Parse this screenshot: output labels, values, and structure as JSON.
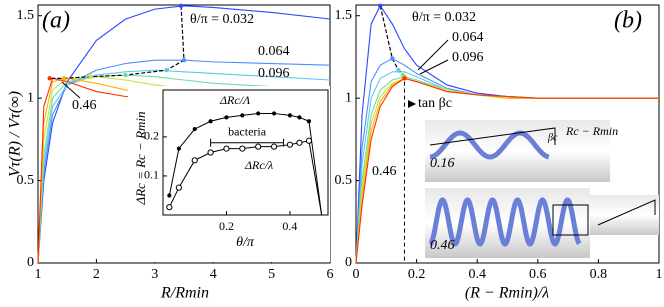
{
  "chart_data": [
    {
      "type": "line",
      "panel_label": "(a)",
      "x_label": "R/Rmin",
      "y_label": "Vτ(R) / Vτ(∞)",
      "x": [
        1,
        1.1,
        1.25,
        1.5,
        2,
        2.5,
        3,
        3.5,
        4,
        5,
        6
      ],
      "series": [
        {
          "color": "#2a48ff",
          "values": [
            0,
            0.5,
            0.85,
            1.1,
            1.35,
            1.48,
            1.54,
            1.56,
            1.55,
            1.52,
            1.48
          ]
        },
        {
          "color": "#4a90ff",
          "values": [
            0,
            0.55,
            0.9,
            1.08,
            1.17,
            1.21,
            1.23,
            1.23,
            1.22,
            1.21,
            1.2
          ]
        },
        {
          "color": "#60c8ec",
          "values": [
            0,
            0.6,
            0.95,
            1.08,
            1.14,
            1.16,
            1.17,
            1.16,
            1.15,
            1.13,
            1.11
          ]
        },
        {
          "color": "#70dca0",
          "values": [
            0,
            0.65,
            1.0,
            1.1,
            1.13,
            1.14,
            1.13,
            1.11,
            1.09,
            1.07,
            1.05
          ]
        },
        {
          "color": "#c8e040",
          "values": [
            0,
            0.75,
            1.05,
            1.12,
            1.13,
            1.11,
            1.08,
            1.06,
            1.04,
            1.03,
            1.02
          ]
        },
        {
          "color": "#ffb000",
          "values": [
            0,
            0.85,
            1.1,
            1.12,
            1.09,
            1.05,
            1.03,
            1.02,
            1.01,
            1.0,
            1.0
          ]
        },
        {
          "color": "#ff3000",
          "values": [
            0,
            0.95,
            1.12,
            1.1,
            1.04,
            1.01,
            1.0,
            1.0,
            1.0,
            1.0,
            1.0
          ]
        }
      ],
      "peaks": {
        "x": [
          3.45,
          3.5,
          3.2,
          2.5,
          1.9,
          1.45,
          1.2
        ],
        "y": [
          1.56,
          1.23,
          1.17,
          1.14,
          1.13,
          1.12,
          1.12
        ]
      },
      "annotations": [
        "θ/π = 0.032",
        "0.064",
        "0.096",
        "0.46"
      ],
      "xlim": [
        1,
        6
      ],
      "ylim": [
        0,
        1.565
      ],
      "xticks": [
        1,
        2,
        3,
        4,
        5,
        6
      ],
      "yticks": [
        0,
        0.5,
        1,
        1.5
      ]
    },
    {
      "type": "line",
      "x_label": "θ/π",
      "y_label": "ΔRc = Rc − Rmin",
      "x": [
        0.02,
        0.05,
        0.1,
        0.15,
        0.2,
        0.25,
        0.3,
        0.35,
        0.4,
        0.43,
        0.46,
        0.5
      ],
      "series": [
        {
          "name": "ΔRc/Λ",
          "marker": "dot",
          "color": "#000000",
          "values": [
            0.05,
            0.17,
            0.22,
            0.24,
            0.25,
            0.255,
            0.26,
            0.26,
            0.255,
            0.25,
            0.24,
            0.0
          ]
        },
        {
          "name": "ΔRc/λ",
          "marker": "circle",
          "color": "#000000",
          "values": [
            0.02,
            0.07,
            0.14,
            0.16,
            0.17,
            0.17,
            0.175,
            0.175,
            0.18,
            0.185,
            0.19,
            0.0
          ]
        }
      ],
      "bacteria": {
        "label": "bacteria",
        "range": [
          0.15,
          0.38
        ],
        "y": 0.185
      },
      "xlim": [
        0,
        0.52
      ],
      "ylim": [
        0,
        0.32
      ],
      "xticks": [
        0.2,
        0.4
      ],
      "yticks": [
        0.1,
        0.2
      ]
    },
    {
      "type": "line",
      "panel_label": "(b)",
      "x_label": "(R − Rmin)/λ",
      "x": [
        0,
        0.02,
        0.05,
        0.08,
        0.12,
        0.16,
        0.2,
        0.3,
        0.4,
        0.5,
        0.6,
        0.8,
        1
      ],
      "series": [
        {
          "color": "#2a48ff",
          "values": [
            0,
            0.9,
            1.45,
            1.56,
            1.45,
            1.3,
            1.2,
            1.08,
            1.03,
            1.01,
            1.0,
            1.0,
            1.0
          ]
        },
        {
          "color": "#4a90ff",
          "values": [
            0,
            0.7,
            1.1,
            1.2,
            1.24,
            1.2,
            1.15,
            1.06,
            1.02,
            1.01,
            1.0,
            1.0,
            1.0
          ]
        },
        {
          "color": "#60c8ec",
          "values": [
            0,
            0.6,
            1.0,
            1.12,
            1.16,
            1.16,
            1.13,
            1.05,
            1.02,
            1.0,
            1.0,
            1.0,
            1.0
          ]
        },
        {
          "color": "#70dca0",
          "values": [
            0,
            0.5,
            0.9,
            1.05,
            1.11,
            1.13,
            1.11,
            1.05,
            1.02,
            1.0,
            1.0,
            1.0,
            1.0
          ]
        },
        {
          "color": "#c8e040",
          "values": [
            0,
            0.45,
            0.85,
            1.01,
            1.09,
            1.12,
            1.1,
            1.05,
            1.02,
            1.0,
            1.0,
            1.0,
            1.0
          ]
        },
        {
          "color": "#ffb000",
          "values": [
            0,
            0.4,
            0.8,
            0.98,
            1.08,
            1.12,
            1.1,
            1.04,
            1.02,
            1.0,
            1.0,
            1.0,
            1.0
          ]
        },
        {
          "color": "#ff3000",
          "values": [
            0,
            0.35,
            0.75,
            0.95,
            1.07,
            1.12,
            1.1,
            1.04,
            1.02,
            1.01,
            1.0,
            1.0,
            1.0
          ]
        }
      ],
      "peaks": {
        "x": [
          0.08,
          0.12,
          0.14,
          0.155,
          0.16,
          0.16,
          0.16
        ],
        "y": [
          1.56,
          1.24,
          1.17,
          1.14,
          1.13,
          1.12,
          1.12
        ]
      },
      "critical_x": 0.16,
      "annotations": [
        "θ/π = 0.032",
        "0.064",
        "0.096",
        "0.46",
        "tan βc"
      ],
      "image_labels": [
        "βc",
        "Rc − Rmin",
        "0.16",
        "0.46"
      ],
      "xlim": [
        0,
        1
      ],
      "ylim": [
        0,
        1.565
      ],
      "xticks": [
        0,
        0.2,
        0.4,
        0.6,
        0.8,
        1
      ],
      "yticks": [
        0,
        0.5,
        1,
        1.5
      ]
    }
  ]
}
